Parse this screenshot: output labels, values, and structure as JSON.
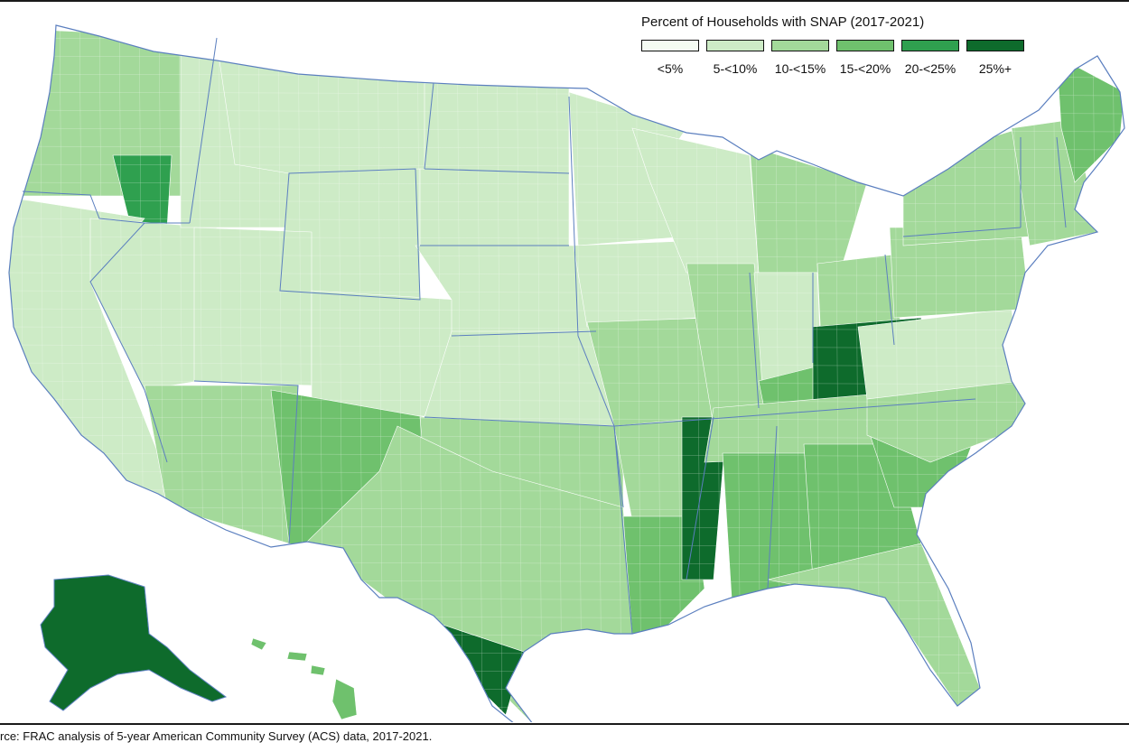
{
  "legend": {
    "title": "Percent of Households with SNAP (2017-2021)",
    "bins": [
      {
        "label": "<5%",
        "color": "#f5fbf3"
      },
      {
        "label": "5-<10%",
        "color": "#cdebc6"
      },
      {
        "label": "10-<15%",
        "color": "#a3d99a"
      },
      {
        "label": "15-<20%",
        "color": "#6fc16d"
      },
      {
        "label": "20-<25%",
        "color": "#2fa04f"
      },
      {
        "label": "25%+",
        "color": "#0e6b2c"
      }
    ]
  },
  "map": {
    "subject": "United States counties (contiguous US, Alaska, Hawaii)",
    "border_color": "#5b7fbf",
    "regions": [
      {
        "area": "Pacific Northwest",
        "level": 2
      },
      {
        "area": "Eastern Oregon",
        "level": 4
      },
      {
        "area": "California",
        "level": 1
      },
      {
        "area": "Nevada",
        "level": 1
      },
      {
        "area": "Idaho",
        "level": 1
      },
      {
        "area": "Montana",
        "level": 1
      },
      {
        "area": "Wyoming",
        "level": 1
      },
      {
        "area": "Utah",
        "level": 1
      },
      {
        "area": "Colorado",
        "level": 1
      },
      {
        "area": "Arizona",
        "level": 2
      },
      {
        "area": "New Mexico",
        "level": 3
      },
      {
        "area": "North Dakota",
        "level": 1
      },
      {
        "area": "South Dakota",
        "level": 1
      },
      {
        "area": "Nebraska",
        "level": 1
      },
      {
        "area": "Kansas",
        "level": 1
      },
      {
        "area": "Oklahoma",
        "level": 2
      },
      {
        "area": "Texas",
        "level": 2
      },
      {
        "area": "South Texas border",
        "level": 5
      },
      {
        "area": "Minnesota",
        "level": 1
      },
      {
        "area": "Iowa",
        "level": 1
      },
      {
        "area": "Missouri",
        "level": 2
      },
      {
        "area": "Arkansas",
        "level": 2
      },
      {
        "area": "Louisiana",
        "level": 3
      },
      {
        "area": "Mississippi Delta",
        "level": 5
      },
      {
        "area": "Wisconsin",
        "level": 1
      },
      {
        "area": "Illinois",
        "level": 2
      },
      {
        "area": "Michigan",
        "level": 2
      },
      {
        "area": "Indiana",
        "level": 1
      },
      {
        "area": "Ohio",
        "level": 2
      },
      {
        "area": "Kentucky",
        "level": 3
      },
      {
        "area": "Appalachia",
        "level": 5
      },
      {
        "area": "Tennessee",
        "level": 2
      },
      {
        "area": "Alabama",
        "level": 3
      },
      {
        "area": "Georgia",
        "level": 3
      },
      {
        "area": "Florida",
        "level": 2
      },
      {
        "area": "South Carolina",
        "level": 3
      },
      {
        "area": "North Carolina",
        "level": 2
      },
      {
        "area": "Virginia",
        "level": 1
      },
      {
        "area": "Pennsylvania",
        "level": 2
      },
      {
        "area": "New York",
        "level": 2
      },
      {
        "area": "New England",
        "level": 2
      },
      {
        "area": "Maine",
        "level": 3
      },
      {
        "area": "Alaska",
        "level": 5
      },
      {
        "area": "Hawaii",
        "level": 3
      }
    ]
  },
  "source_text": "rce: FRAC analysis of 5-year American Community Survey (ACS) data, 2017-2021."
}
